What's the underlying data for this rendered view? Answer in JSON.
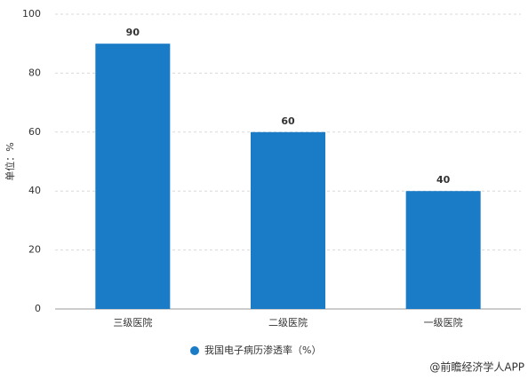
{
  "chart_data": {
    "type": "bar",
    "y_label": "单位：%",
    "categories": [
      "三级医院",
      "二级医院",
      "一级医院"
    ],
    "series": [
      {
        "name": "我国电子病历渗透率（%）",
        "color": "#1a7bc7",
        "values": [
          90,
          60,
          40
        ]
      }
    ],
    "ylim": [
      0,
      100
    ],
    "yticks": [
      0,
      20,
      40,
      60,
      80,
      100
    ],
    "grid": true,
    "legend": "bottom",
    "source": "@前瞻经济学人APP"
  }
}
